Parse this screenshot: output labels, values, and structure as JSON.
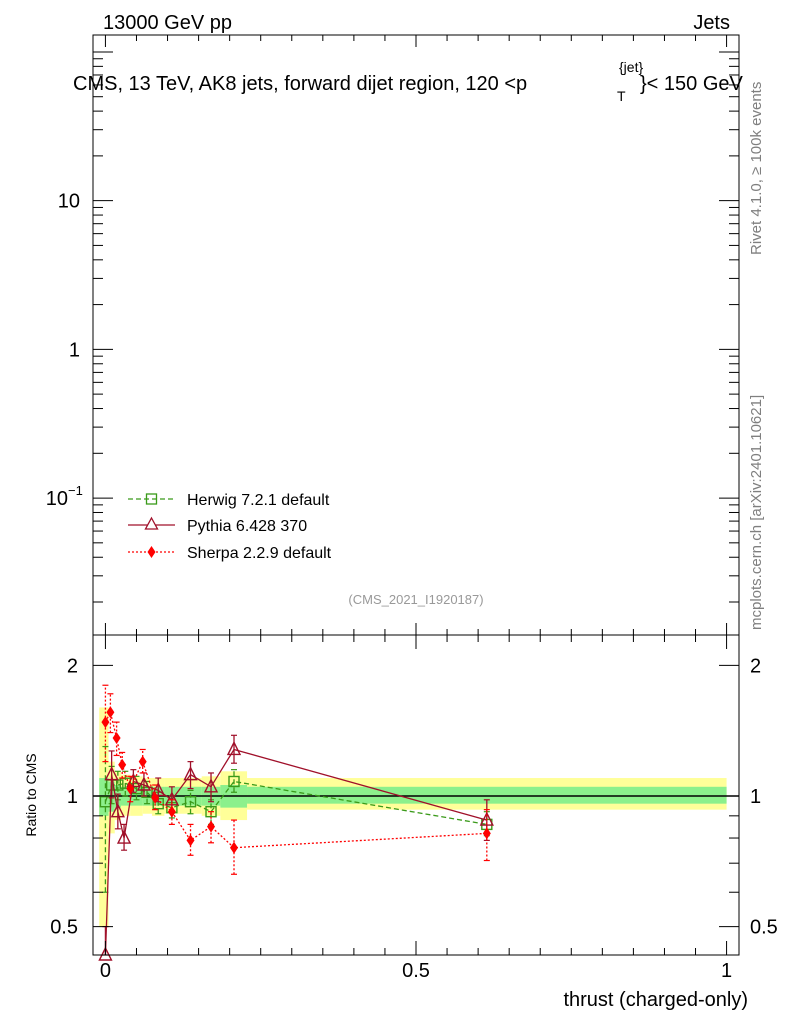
{
  "header": {
    "left_label": "13000 GeV pp",
    "right_label": "Jets",
    "title_main": "CMS, 13 TeV, AK8 jets, forward dijet region, 120 <p",
    "title_sup": "{jet}",
    "title_sub": "T",
    "title_tail": "}< 150 GeV"
  },
  "side_labels": {
    "rivet": "Rivet 4.1.0, ≥ 100k events",
    "mcplots": "mcplots.cern.ch [arXiv:2401.10621]"
  },
  "watermark": "(CMS_2021_I1920187)",
  "colors": {
    "herwig": "#3a9a1a",
    "pythia": "#a0102a",
    "sherpa": "#ff0000",
    "band_inner": "#8cf08c",
    "band_outer": "#ffff99"
  },
  "chart_data": [
    {
      "type": "line",
      "panel": "main",
      "yscale": "log",
      "xlim": [
        -0.02,
        1.02
      ],
      "ylim": [
        0.012,
        130
      ],
      "y_ticks": [
        {
          "value": 10,
          "label": "10"
        },
        {
          "value": 1,
          "label": "1"
        },
        {
          "value": 0.1,
          "label": "10",
          "exponent": "−1"
        }
      ],
      "legend_position": "lower-left",
      "legend": [
        {
          "name": "Herwig 7.2.1 default",
          "style": "dashed",
          "marker": "open-square",
          "color": "#3a9a1a"
        },
        {
          "name": "Pythia 6.428 370",
          "style": "solid",
          "marker": "open-triangle",
          "color": "#a0102a"
        },
        {
          "name": "Sherpa 2.2.9 default",
          "style": "dotted",
          "marker": "filled-diamond",
          "color": "#ff0000"
        }
      ],
      "series": []
    },
    {
      "type": "line",
      "panel": "ratio",
      "ylabel": "Ratio to CMS",
      "xlabel": "thrust (charged-only)",
      "yscale": "log",
      "xlim": [
        -0.02,
        1.02
      ],
      "ylim": [
        0.43,
        2.35
      ],
      "x_ticks": [
        {
          "value": 0,
          "label": "0"
        },
        {
          "value": 0.5,
          "label": "0.5"
        },
        {
          "value": 1,
          "label": "1"
        }
      ],
      "y_ticks": [
        {
          "value": 2,
          "label": "2"
        },
        {
          "value": 1,
          "label": "1"
        },
        {
          "value": 0.5,
          "label": "0.5"
        }
      ],
      "reference_line": 1,
      "bands": [
        {
          "x0": -0.01,
          "x1": 0.005,
          "inner": [
            0.9,
            1.1
          ],
          "outer": [
            0.5,
            1.6
          ]
        },
        {
          "x0": 0.005,
          "x1": 0.015,
          "inner": [
            0.92,
            1.08
          ],
          "outer": [
            0.82,
            1.2
          ]
        },
        {
          "x0": 0.015,
          "x1": 0.025,
          "inner": [
            0.94,
            1.06
          ],
          "outer": [
            0.88,
            1.14
          ]
        },
        {
          "x0": 0.025,
          "x1": 0.04,
          "inner": [
            0.95,
            1.05
          ],
          "outer": [
            0.9,
            1.12
          ]
        },
        {
          "x0": 0.04,
          "x1": 0.06,
          "inner": [
            0.95,
            1.05
          ],
          "outer": [
            0.9,
            1.11
          ]
        },
        {
          "x0": 0.06,
          "x1": 0.075,
          "inner": [
            0.95,
            1.05
          ],
          "outer": [
            0.91,
            1.1
          ]
        },
        {
          "x0": 0.075,
          "x1": 0.095,
          "inner": [
            0.95,
            1.05
          ],
          "outer": [
            0.9,
            1.1
          ]
        },
        {
          "x0": 0.095,
          "x1": 0.12,
          "inner": [
            0.95,
            1.05
          ],
          "outer": [
            0.91,
            1.1
          ]
        },
        {
          "x0": 0.12,
          "x1": 0.155,
          "inner": [
            0.95,
            1.05
          ],
          "outer": [
            0.91,
            1.1
          ]
        },
        {
          "x0": 0.155,
          "x1": 0.185,
          "inner": [
            0.95,
            1.05
          ],
          "outer": [
            0.9,
            1.11
          ]
        },
        {
          "x0": 0.185,
          "x1": 0.228,
          "inner": [
            0.94,
            1.06
          ],
          "outer": [
            0.88,
            1.14
          ]
        },
        {
          "x0": 0.228,
          "x1": 1.0,
          "inner": [
            0.96,
            1.05
          ],
          "outer": [
            0.93,
            1.1
          ]
        }
      ],
      "series": [
        {
          "name": "Herwig 7.2.1 default",
          "color": "#3a9a1a",
          "dash": "5,3",
          "marker": "square",
          "points": [
            {
              "x": 0.0,
              "y": 0.97,
              "err": [
                0.6,
                1.3
              ]
            },
            {
              "x": 0.01,
              "y": 1.06,
              "err": [
                0.96,
                1.17
              ]
            },
            {
              "x": 0.02,
              "y": 1.06,
              "err": [
                0.98,
                1.14
              ]
            },
            {
              "x": 0.032,
              "y": 1.07,
              "err": [
                1.0,
                1.14
              ]
            },
            {
              "x": 0.05,
              "y": 1.04,
              "err": [
                0.98,
                1.11
              ]
            },
            {
              "x": 0.067,
              "y": 1.02,
              "err": [
                0.96,
                1.08
              ]
            },
            {
              "x": 0.085,
              "y": 0.96,
              "err": [
                0.91,
                1.02
              ]
            },
            {
              "x": 0.107,
              "y": 0.94,
              "err": [
                0.89,
                1.0
              ]
            },
            {
              "x": 0.137,
              "y": 0.97,
              "err": [
                0.91,
                1.03
              ]
            },
            {
              "x": 0.17,
              "y": 0.92,
              "err": [
                0.86,
                0.98
              ]
            },
            {
              "x": 0.207,
              "y": 1.08,
              "err": [
                1.02,
                1.15
              ]
            },
            {
              "x": 0.614,
              "y": 0.86,
              "err": [
                0.81,
                0.92
              ]
            }
          ]
        },
        {
          "name": "Pythia 6.428 370",
          "color": "#a0102a",
          "dash": "",
          "marker": "triangle",
          "points": [
            {
              "x": 0.0,
              "y": 0.38,
              "err": [
                0.3,
                0.5
              ]
            },
            {
              "x": 0.01,
              "y": 1.12,
              "err": [
                0.99,
                1.27
              ]
            },
            {
              "x": 0.02,
              "y": 0.92,
              "err": [
                0.84,
                1.01
              ]
            },
            {
              "x": 0.03,
              "y": 0.8,
              "err": [
                0.75,
                0.86
              ]
            },
            {
              "x": 0.045,
              "y": 1.08,
              "err": [
                1.02,
                1.15
              ]
            },
            {
              "x": 0.062,
              "y": 1.06,
              "err": [
                1.0,
                1.13
              ]
            },
            {
              "x": 0.085,
              "y": 1.03,
              "err": [
                0.97,
                1.1
              ]
            },
            {
              "x": 0.107,
              "y": 0.98,
              "err": [
                0.92,
                1.05
              ]
            },
            {
              "x": 0.137,
              "y": 1.12,
              "err": [
                1.04,
                1.2
              ]
            },
            {
              "x": 0.17,
              "y": 1.05,
              "err": [
                0.97,
                1.13
              ]
            },
            {
              "x": 0.207,
              "y": 1.28,
              "err": [
                1.19,
                1.38
              ]
            },
            {
              "x": 0.614,
              "y": 0.88,
              "err": [
                0.79,
                0.98
              ]
            }
          ]
        },
        {
          "name": "Sherpa 2.2.9 default",
          "color": "#ff0000",
          "dash": "2,2",
          "marker": "diamond",
          "points": [
            {
              "x": 0.0,
              "y": 1.48,
              "err": [
                1.2,
                1.8
              ]
            },
            {
              "x": 0.008,
              "y": 1.56,
              "err": [
                1.4,
                1.72
              ]
            },
            {
              "x": 0.018,
              "y": 1.36,
              "err": [
                1.24,
                1.48
              ]
            },
            {
              "x": 0.027,
              "y": 1.18,
              "err": [
                1.1,
                1.26
              ]
            },
            {
              "x": 0.04,
              "y": 1.04,
              "err": [
                0.97,
                1.11
              ]
            },
            {
              "x": 0.06,
              "y": 1.2,
              "err": [
                1.13,
                1.28
              ]
            },
            {
              "x": 0.08,
              "y": 0.99,
              "err": [
                0.93,
                1.06
              ]
            },
            {
              "x": 0.107,
              "y": 0.92,
              "err": [
                0.86,
                0.98
              ]
            },
            {
              "x": 0.137,
              "y": 0.79,
              "err": [
                0.73,
                0.86
              ]
            },
            {
              "x": 0.17,
              "y": 0.85,
              "err": [
                0.78,
                0.92
              ]
            },
            {
              "x": 0.207,
              "y": 0.76,
              "err": [
                0.66,
                0.88
              ]
            },
            {
              "x": 0.614,
              "y": 0.82,
              "err": [
                0.71,
                0.93
              ]
            }
          ]
        }
      ]
    }
  ]
}
